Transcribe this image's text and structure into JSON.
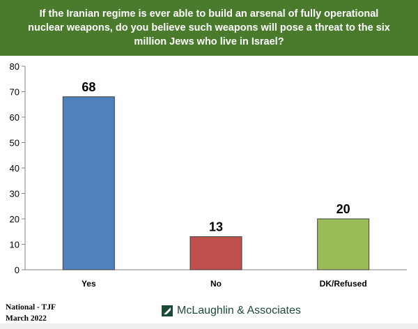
{
  "header": {
    "question": "If the Iranian regime is ever able to build an arsenal of fully operational nuclear weapons, do you believe such weapons will pose a threat to the six million Jews who live in Israel?"
  },
  "chart_data": {
    "type": "bar",
    "categories": [
      "Yes",
      "No",
      "DK/Refused"
    ],
    "values": [
      68,
      13,
      20
    ],
    "colors": [
      "#4f81bd",
      "#c0504d",
      "#9bbb59"
    ],
    "ylim": [
      0,
      80
    ],
    "yticks": [
      0,
      10,
      20,
      30,
      40,
      50,
      60,
      70,
      80
    ],
    "grid": false,
    "legend": "none"
  },
  "footer": {
    "line1": "National - TJF",
    "line2": "March 2022",
    "brand": "McLaughlin & Associates",
    "brand_color": "#1b4b36"
  }
}
